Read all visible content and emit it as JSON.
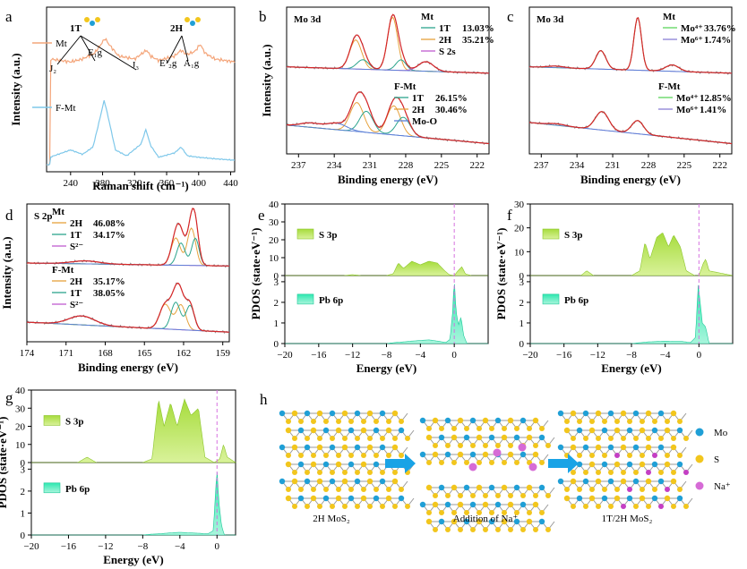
{
  "colors": {
    "mt": "#f4a57a",
    "fmt": "#7fc8ea",
    "fit": "#d62728",
    "two_h": "#e6a23c",
    "one_t": "#2ca58d",
    "s2s": "#c05ccf",
    "moo": "#5b7fd6",
    "mo4": "#5cd65c",
    "mo6": "#8a7fd6",
    "s3p": "#a6dc3c",
    "pb6p": "#2ee8b0",
    "fermi": "#d672e0"
  },
  "chart_data": [
    {
      "panel": "a",
      "type": "line",
      "xlabel": "Raman shift (cm⁻¹)",
      "ylabel": "Intensity (a.u.)",
      "xlim": [
        210,
        445
      ],
      "xticks": [
        240,
        280,
        320,
        360,
        400,
        440
      ],
      "series": [
        {
          "name": "Mt",
          "x": [
            214,
            240,
            255,
            270,
            278,
            283,
            288,
            300,
            320,
            335,
            340,
            350,
            370,
            378,
            385,
            395,
            402,
            408,
            420,
            445
          ],
          "y": [
            0.72,
            0.7,
            0.72,
            0.76,
            0.82,
            0.86,
            0.82,
            0.74,
            0.72,
            0.78,
            0.74,
            0.71,
            0.74,
            0.78,
            0.75,
            0.77,
            0.82,
            0.76,
            0.72,
            0.7
          ]
        },
        {
          "name": "F-Mt",
          "x": [
            214,
            240,
            255,
            268,
            276,
            282,
            288,
            296,
            310,
            328,
            334,
            340,
            350,
            370,
            378,
            386,
            400,
            420,
            445
          ],
          "y": [
            0.05,
            0.1,
            0.07,
            0.12,
            0.3,
            0.44,
            0.3,
            0.1,
            0.06,
            0.14,
            0.24,
            0.13,
            0.05,
            0.08,
            0.12,
            0.06,
            0.05,
            0.04,
            0.03
          ]
        }
      ],
      "annotations": [
        "1T",
        "2H",
        "J₂",
        "E₁g",
        "J₃",
        "E¹₂g",
        "A₁g",
        "Mt",
        "F-Mt"
      ]
    },
    {
      "panel": "b",
      "type": "line",
      "title": "Mo 3d",
      "xlabel": "Binding energy (eV)",
      "ylabel": "Intensity (a.u.)",
      "xlim": [
        238,
        221
      ],
      "xticks": [
        237,
        234,
        231,
        228,
        225,
        222
      ],
      "legend_top": {
        "title": "Mt",
        "entries": [
          {
            "name": "1T",
            "value": "13.03%"
          },
          {
            "name": "2H",
            "value": "35.21%"
          },
          {
            "name": "S 2s",
            "value": ""
          }
        ]
      },
      "legend_bottom": {
        "title": "F-Mt",
        "entries": [
          {
            "name": "1T",
            "value": "26.15%"
          },
          {
            "name": "2H",
            "value": "30.46%"
          },
          {
            "name": "Mo-O",
            "value": ""
          }
        ]
      },
      "peaks_top": {
        "2H": [
          [
            232.2,
            0.55,
            0.7
          ],
          [
            229.1,
            1.0,
            0.6
          ]
        ],
        "1T": [
          [
            231.6,
            0.18,
            0.7
          ],
          [
            228.4,
            0.2,
            0.6
          ]
        ],
        "S 2s": [
          [
            226.3,
            0.18,
            0.9
          ]
        ]
      },
      "peaks_bottom": {
        "2H": [
          [
            232.1,
            0.55,
            0.8
          ],
          [
            229.0,
            0.55,
            0.8
          ]
        ],
        "1T": [
          [
            231.3,
            0.4,
            0.8
          ],
          [
            228.2,
            0.35,
            0.8
          ]
        ],
        "Mo-O": [
          [
            233.8,
            0.12,
            1.2
          ],
          [
            236.0,
            0.08,
            1.2
          ]
        ]
      }
    },
    {
      "panel": "c",
      "type": "line",
      "title": "Mo 3d",
      "xlabel": "Binding energy (eV)",
      "ylabel": "",
      "xlim": [
        238,
        221
      ],
      "xticks": [
        237,
        234,
        231,
        228,
        225,
        222
      ],
      "legend_top": {
        "title": "Mt",
        "entries": [
          {
            "name": "Mo⁴⁺",
            "value": "33.76%"
          },
          {
            "name": "Mo⁶⁺",
            "value": "1.74%"
          }
        ]
      },
      "legend_bottom": {
        "title": "F-Mt",
        "entries": [
          {
            "name": "Mo⁴⁺",
            "value": "12.85%"
          },
          {
            "name": "Mo⁶⁺",
            "value": "1.41%"
          }
        ]
      }
    },
    {
      "panel": "d",
      "type": "line",
      "title": "S 2p",
      "xlabel": "Binding energy (eV)",
      "ylabel": "Intensity (a.u.)",
      "xlim": [
        174,
        158.5
      ],
      "xticks": [
        174,
        171,
        168,
        165,
        162,
        159
      ],
      "legend_top": {
        "title": "Mt",
        "entries": [
          {
            "name": "2H",
            "value": "46.08%"
          },
          {
            "name": "1T",
            "value": "34.17%"
          },
          {
            "name": "S²⁻",
            "value": ""
          }
        ]
      },
      "legend_bottom": {
        "title": "F-Mt",
        "entries": [
          {
            "name": "2H",
            "value": "35.17%"
          },
          {
            "name": "1T",
            "value": "38.05%"
          },
          {
            "name": "S²⁻",
            "value": ""
          }
        ]
      }
    },
    {
      "panel": "e",
      "type": "area",
      "xlabel": "Energy (eV)",
      "ylabel": "PDOS (state·eV⁻¹)",
      "xlim": [
        -20,
        4
      ],
      "xticks": [
        -20,
        -16,
        -12,
        -8,
        -4,
        0
      ],
      "top": {
        "name": "S 3p",
        "ylim": [
          0,
          40
        ],
        "yticks": [
          0,
          10,
          20,
          30,
          40
        ],
        "x": [
          -20,
          -13,
          -12,
          -11,
          -8,
          -7.2,
          -6.6,
          -6,
          -5,
          -4,
          -3,
          -2,
          -1.2,
          -0.6,
          0,
          0.5,
          0.9,
          1.3,
          2,
          4
        ],
        "y": [
          0,
          0,
          0.5,
          0,
          0,
          1,
          7,
          4,
          8,
          6,
          8,
          7,
          3,
          0.5,
          0,
          3,
          5,
          1,
          0,
          0
        ]
      },
      "bottom": {
        "name": "Pb 6p",
        "ylim": [
          0,
          3.3
        ],
        "yticks": [
          0,
          1,
          2,
          3
        ],
        "x": [
          -20,
          -8,
          -7,
          -6,
          -5,
          -4,
          -3,
          -2,
          -1,
          -0.5,
          -0.2,
          0,
          0.2,
          0.5,
          0.8,
          1.1,
          1.5,
          4
        ],
        "y": [
          0,
          0,
          0.05,
          0.08,
          0.12,
          0.15,
          0.18,
          0.12,
          0.05,
          0.2,
          1.5,
          3.2,
          1.6,
          0.9,
          1.3,
          0.4,
          0,
          0
        ]
      }
    },
    {
      "panel": "f",
      "type": "area",
      "xlabel": "Energy (eV)",
      "ylabel": "PDOS (state·eV⁻¹)",
      "xlim": [
        -20,
        4
      ],
      "xticks": [
        -20,
        -16,
        -12,
        -8,
        -4,
        0
      ],
      "top": {
        "name": "S 3p",
        "ylim": [
          0,
          30
        ],
        "yticks": [
          0,
          10,
          20,
          30
        ],
        "x": [
          -20,
          -14,
          -13.3,
          -12.5,
          -8,
          -7,
          -6.4,
          -5.8,
          -5,
          -4.3,
          -3.6,
          -3,
          -2.2,
          -1.5,
          -0.5,
          0,
          0.5,
          0.8,
          1.2,
          4
        ],
        "y": [
          0,
          0,
          2,
          0,
          0,
          2,
          14,
          7,
          16,
          18,
          12,
          17,
          12,
          2,
          0,
          0,
          5,
          7,
          2,
          0
        ]
      },
      "bottom": {
        "name": "Pb 6p",
        "ylim": [
          0,
          3.3
        ],
        "yticks": [
          0,
          1,
          2,
          3
        ],
        "x": [
          -20,
          -8,
          -7,
          -6,
          -5,
          -4,
          -3,
          -2,
          -1,
          -0.4,
          -0.1,
          0.1,
          0.4,
          0.8,
          1.2,
          4
        ],
        "y": [
          0,
          0,
          0.04,
          0.08,
          0.1,
          0.12,
          0.1,
          0.1,
          0.05,
          0.3,
          2.9,
          2.2,
          1.0,
          0.8,
          0,
          0
        ]
      }
    },
    {
      "panel": "g",
      "type": "area",
      "xlabel": "Energy (eV)",
      "ylabel": "PDOS (state·eV⁻¹)",
      "xlim": [
        -20,
        2
      ],
      "xticks": [
        -20,
        -16,
        -12,
        -8,
        -4,
        0
      ],
      "top": {
        "name": "S 3p",
        "ylim": [
          0,
          40
        ],
        "yticks": [
          0,
          10,
          20,
          30,
          40
        ],
        "x": [
          -20,
          -15,
          -14,
          -13,
          -8,
          -7,
          -6.3,
          -5.7,
          -5,
          -4.3,
          -3.5,
          -2.8,
          -2,
          -1.3,
          -0.3,
          0.3,
          0.7,
          1.1,
          2
        ],
        "y": [
          0,
          0,
          3,
          0,
          0,
          2,
          35,
          20,
          33,
          20,
          35,
          26,
          30,
          3,
          0,
          2,
          10,
          3,
          0
        ]
      },
      "bottom": {
        "name": "Pb 6p",
        "ylim": [
          0,
          3.3
        ],
        "yticks": [
          0,
          1,
          2,
          3
        ],
        "x": [
          -20,
          -8,
          -7,
          -6,
          -5,
          -4,
          -3,
          -2,
          -1,
          -0.4,
          -0.15,
          0,
          0.2,
          0.5,
          0.8,
          2
        ],
        "y": [
          0,
          0,
          0.04,
          0.06,
          0.1,
          0.12,
          0.1,
          0.08,
          0.05,
          0.2,
          2.0,
          3.0,
          1.5,
          0.4,
          0,
          0
        ]
      }
    },
    {
      "panel": "h",
      "type": "diagram",
      "captions": [
        "2H MoS₂",
        "Addition of Na⁺",
        "1T/2H MoS₂"
      ],
      "legend": [
        {
          "name": "Mo",
          "color": "#1f9fd6"
        },
        {
          "name": "S",
          "color": "#f2c61d"
        },
        {
          "name": "Na⁺",
          "color": "#d66bd6"
        }
      ]
    }
  ],
  "panel_letters": [
    "a",
    "b",
    "c",
    "d",
    "e",
    "f",
    "g",
    "h"
  ]
}
